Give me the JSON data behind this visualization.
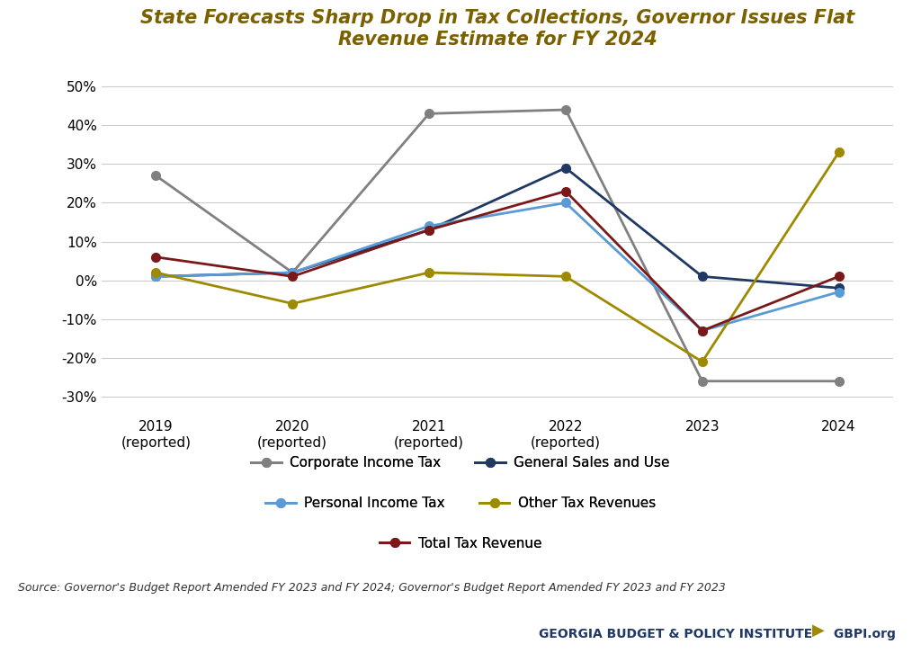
{
  "title": "State Forecasts Sharp Drop in Tax Collections, Governor Issues Flat\nRevenue Estimate for FY 2024",
  "title_color": "#7B6000",
  "x_labels": [
    "2019\n(reported)",
    "2020\n(reported)",
    "2021\n(reported)",
    "2022\n(reported)",
    "2023",
    "2024"
  ],
  "series_order": [
    "Corporate Income Tax",
    "General Sales and Use",
    "Personal Income Tax",
    "Other Tax Revenues",
    "Total Tax Revenue"
  ],
  "series": {
    "Corporate Income Tax": {
      "values": [
        27,
        2,
        43,
        44,
        -26,
        -26
      ],
      "color": "#808080",
      "marker": "o"
    },
    "General Sales and Use": {
      "values": [
        1,
        2,
        13,
        29,
        1,
        -2
      ],
      "color": "#1F3864",
      "marker": "o"
    },
    "Personal Income Tax": {
      "values": [
        1,
        2,
        14,
        20,
        -13,
        -3
      ],
      "color": "#5B9BD5",
      "marker": "o"
    },
    "Other Tax Revenues": {
      "values": [
        2,
        -6,
        2,
        1,
        -21,
        33
      ],
      "color": "#9E8A00",
      "marker": "o"
    },
    "Total Tax Revenue": {
      "values": [
        6,
        1,
        13,
        23,
        -13,
        1
      ],
      "color": "#7B1818",
      "marker": "o"
    }
  },
  "ylim": [
    -35,
    55
  ],
  "yticks": [
    -30,
    -20,
    -10,
    0,
    10,
    20,
    30,
    40,
    50
  ],
  "ytick_labels": [
    "-30%",
    "-20%",
    "-10%",
    "0%",
    "10%",
    "20%",
    "30%",
    "40%",
    "50%"
  ],
  "source_text": "Source: Governor's Budget Report Amended FY 2023 and FY 2024; Governor's Budget Report Amended FY 2023 and FY 2023",
  "institute_text": "GEORGIA BUDGET & POLICY INSTITUTE",
  "gbpi_text": " GBPI.org",
  "institute_color": "#1F3864",
  "gbpi_color": "#1F3864",
  "arrow_color": "#9E8A00",
  "background_color": "#FFFFFF",
  "grid_color": "#CCCCCC",
  "legend_row1": [
    "Corporate Income Tax",
    "General Sales and Use"
  ],
  "legend_row2": [
    "Personal Income Tax",
    "Other Tax Revenues"
  ],
  "legend_row3": [
    "Total Tax Revenue"
  ]
}
